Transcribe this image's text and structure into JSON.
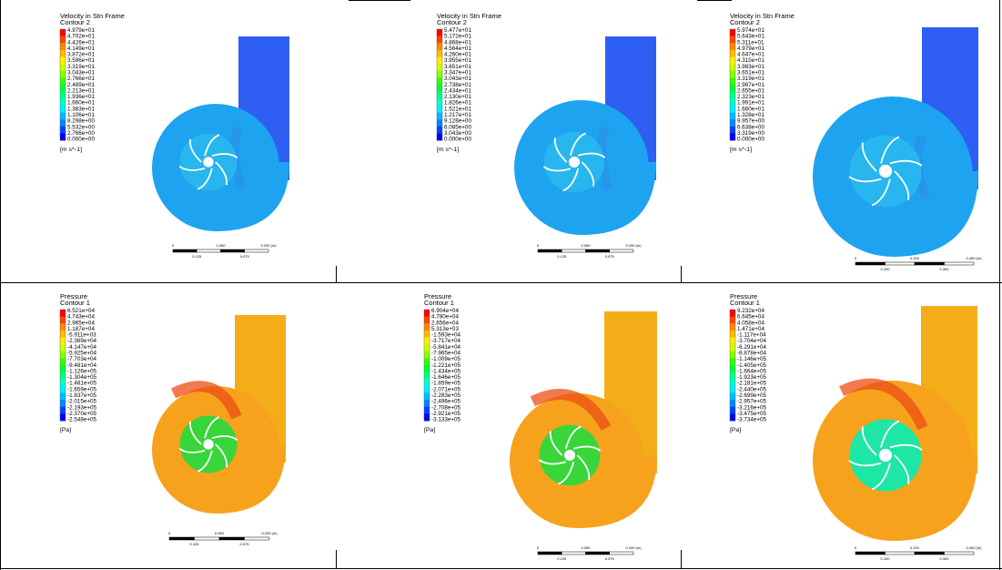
{
  "colors": {
    "bar": [
      "#ff0000",
      "#ff4400",
      "#ff8800",
      "#ffbb00",
      "#ffee00",
      "#ccff00",
      "#88ff00",
      "#33ff00",
      "#00ff33",
      "#00ff88",
      "#00ffcc",
      "#00eeff",
      "#00bbff",
      "#0088ff",
      "#0044ff",
      "#0000ff"
    ],
    "velocity_body": "#1ea3f0",
    "velocity_outlet": "#2f5ff2",
    "velocity_tongue": "#2c8de8",
    "pressure_body": "#f7a21c",
    "pressure_outlet": "#f3ad19",
    "pressure_hot": "#ec4d14",
    "pressure_impeller": "#38d63a",
    "pressure_impeller_alt": "#1ee6a4",
    "blade": "#ffffff"
  },
  "panels": [
    {
      "kind": "velocity",
      "title": "Velocity in Stn Frame",
      "subtitle": "Contour 2",
      "unit": "[m s^-1]",
      "ticks": [
        "4.979e+01",
        "4.702e+01",
        "4.426e+01",
        "4.149e+01",
        "3.872e+01",
        "3.596e+01",
        "3.319e+01",
        "3.043e+01",
        "2.766e+01",
        "2.489e+01",
        "2.213e+01",
        "1.936e+01",
        "1.660e+01",
        "1.383e+01",
        "1.106e+01",
        "8.298e+00",
        "5.532e+00",
        "2.766e+00",
        "0.000e+00"
      ],
      "scale": {
        "start": "0",
        "mid": "0.050",
        "end": "0.200 (m)",
        "sub1": "0.125",
        "sub2": "0.075"
      }
    },
    {
      "kind": "velocity",
      "title": "Velocity in Stn Frame",
      "subtitle": "Contour 2",
      "unit": "[m s^-1]",
      "ticks": [
        "5.477e+01",
        "5.172e+01",
        "4.868e+01",
        "4.564e+01",
        "4.260e+01",
        "3.955e+01",
        "3.651e+01",
        "3.347e+01",
        "3.043e+01",
        "2.738e+01",
        "2.434e+01",
        "2.130e+01",
        "1.826e+01",
        "1.521e+01",
        "1.217e+01",
        "9.128e+00",
        "6.085e+00",
        "3.043e+00",
        "0.000e+00"
      ],
      "scale": {
        "start": "0",
        "mid": "0.050",
        "end": "0.200 (m)",
        "sub1": "0.125",
        "sub2": "0.075"
      }
    },
    {
      "kind": "velocity",
      "title": "Velocity in Stn Frame",
      "subtitle": "Contour 2",
      "unit": "[m s^-1]",
      "ticks": [
        "5.974e+01",
        "5.643e+01",
        "5.311e+01",
        "4.979e+01",
        "4.647e+01",
        "4.315e+01",
        "3.983e+01",
        "3.651e+01",
        "3.319e+01",
        "2.987e+01",
        "2.655e+01",
        "2.323e+01",
        "1.991e+01",
        "1.660e+01",
        "1.328e+01",
        "9.957e+00",
        "6.638e+00",
        "3.319e+00",
        "0.000e+00"
      ],
      "scale": {
        "start": "0",
        "mid": "0.200",
        "end": "0.400 (m)",
        "sub1": "0.100",
        "sub2": "0.300"
      }
    },
    {
      "kind": "pressure",
      "title": "Pressure",
      "subtitle": "Contour 1",
      "unit": "[Pa]",
      "ticks": [
        "6.521e+04",
        "4.743e+04",
        "2.965e+04",
        "1.187e+04",
        "-5.911e+03",
        "-2.369e+04",
        "-4.147e+04",
        "-5.925e+04",
        "-7.703e+04",
        "-9.481e+04",
        "-1.126e+05",
        "-1.304e+05",
        "-1.481e+05",
        "-1.659e+05",
        "-1.837e+05",
        "-2.015e+05",
        "-2.193e+05",
        "-2.370e+05",
        "-2.548e+05"
      ],
      "scale": {
        "start": "0",
        "mid": "0.050",
        "end": "0.200 (m)",
        "sub1": "0.125",
        "sub2": "0.075"
      }
    },
    {
      "kind": "pressure",
      "title": "Pressure",
      "subtitle": "Contour 1",
      "unit": "[Pa]",
      "ticks": [
        "6.904e+04",
        "4.780e+04",
        "2.656e+04",
        "5.313e+03",
        "-1.593e+04",
        "-3.717e+04",
        "-5.841e+04",
        "-7.965e+04",
        "-1.009e+05",
        "-1.221e+05",
        "-1.434e+05",
        "-1.646e+05",
        "-1.859e+05",
        "-2.071e+05",
        "-2.283e+05",
        "-2.496e+05",
        "-2.708e+05",
        "-2.921e+05",
        "-3.133e+05"
      ],
      "scale": {
        "start": "0",
        "mid": "0.050",
        "end": "0.200 (m)",
        "sub1": "0.125",
        "sub2": "0.075"
      }
    },
    {
      "kind": "pressure",
      "title": "Pressure",
      "subtitle": "Contour 1",
      "unit": "[Pa]",
      "ticks": [
        "9.232e+04",
        "6.645e+04",
        "4.058e+04",
        "1.471e+04",
        "-1.117e+04",
        "-3.704e+04",
        "-6.291e+04",
        "-8.878e+04",
        "-1.146e+05",
        "-1.405e+05",
        "-1.664e+05",
        "-1.923e+05",
        "-2.181e+05",
        "-2.440e+05",
        "-2.699e+05",
        "-2.957e+05",
        "-3.216e+05",
        "-3.475e+05",
        "-3.734e+05"
      ],
      "scale": {
        "start": "0",
        "mid": "0.200",
        "end": "0.400 (m)",
        "sub1": "0.100",
        "sub2": "0.300"
      }
    }
  ]
}
